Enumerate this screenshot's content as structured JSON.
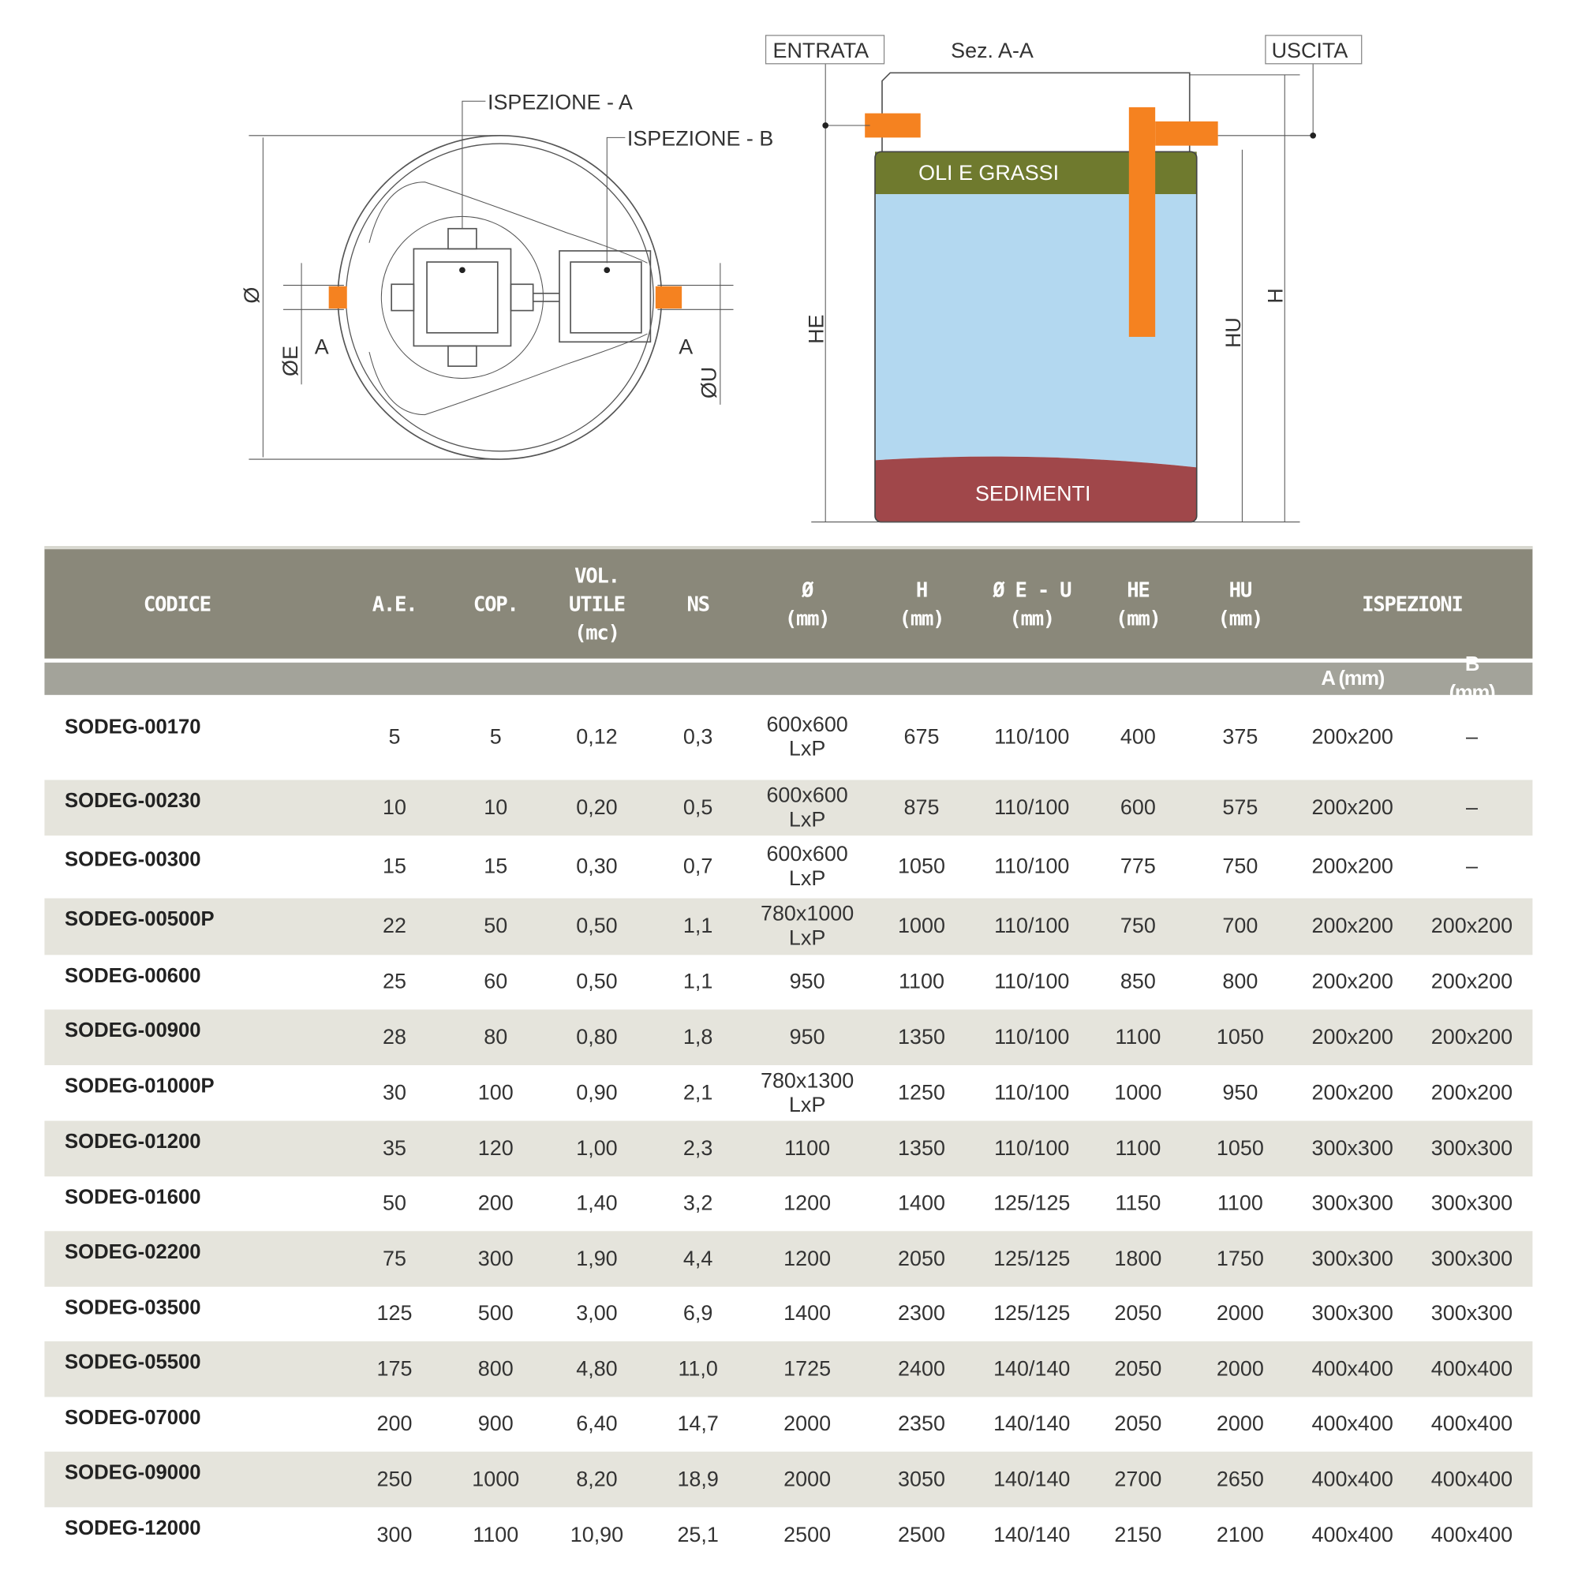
{
  "diagram": {
    "plan": {
      "labels": {
        "insp_a": "ISPEZIONE - A",
        "insp_b": "ISPEZIONE - B",
        "diameter": "Ø",
        "oe": "ØE",
        "ou": "ØU",
        "a_left": "A",
        "a_right": "A"
      }
    },
    "section": {
      "title": "Sez. A-A",
      "entrata": "ENTRATA",
      "uscita": "USCITA",
      "oli": "OLI E GRASSI",
      "sedimenti": "SEDIMENTI",
      "he": "HE",
      "hu": "HU",
      "h": "H"
    },
    "colors": {
      "pipe": "#f58220",
      "oil": "#6f7a2e",
      "water": "#b3d8f0",
      "sediment": "#a0474a"
    }
  },
  "table": {
    "headers": [
      "CODICE",
      "A.E.",
      "COP.",
      "VOL.\nUTILE\n(mc)",
      "NS",
      "Ø\n(mm)",
      "H\n(mm)",
      "Ø E - U\n(mm)",
      "HE\n(mm)",
      "HU\n(mm)",
      "ISPEZIONI"
    ],
    "subheaders": [
      "A (mm)",
      "B (mm)"
    ],
    "rows": [
      [
        "SODEG-00170",
        "5",
        "5",
        "0,12",
        "0,3",
        "600x600\nLxP",
        "675",
        "110/100",
        "400",
        "375",
        "200x200",
        "–"
      ],
      [
        "SODEG-00230",
        "10",
        "10",
        "0,20",
        "0,5",
        "600x600\nLxP",
        "875",
        "110/100",
        "600",
        "575",
        "200x200",
        "–"
      ],
      [
        "SODEG-00300",
        "15",
        "15",
        "0,30",
        "0,7",
        "600x600\nLxP",
        "1050",
        "110/100",
        "775",
        "750",
        "200x200",
        "–"
      ],
      [
        "SODEG-00500P",
        "22",
        "50",
        "0,50",
        "1,1",
        "780x1000\nLxP",
        "1000",
        "110/100",
        "750",
        "700",
        "200x200",
        "200x200"
      ],
      [
        "SODEG-00600",
        "25",
        "60",
        "0,50",
        "1,1",
        "950",
        "1100",
        "110/100",
        "850",
        "800",
        "200x200",
        "200x200"
      ],
      [
        "SODEG-00900",
        "28",
        "80",
        "0,80",
        "1,8",
        "950",
        "1350",
        "110/100",
        "1100",
        "1050",
        "200x200",
        "200x200"
      ],
      [
        "SODEG-01000P",
        "30",
        "100",
        "0,90",
        "2,1",
        "780x1300\nLxP",
        "1250",
        "110/100",
        "1000",
        "950",
        "200x200",
        "200x200"
      ],
      [
        "SODEG-01200",
        "35",
        "120",
        "1,00",
        "2,3",
        "1100",
        "1350",
        "110/100",
        "1100",
        "1050",
        "300x300",
        "300x300"
      ],
      [
        "SODEG-01600",
        "50",
        "200",
        "1,40",
        "3,2",
        "1200",
        "1400",
        "125/125",
        "1150",
        "1100",
        "300x300",
        "300x300"
      ],
      [
        "SODEG-02200",
        "75",
        "300",
        "1,90",
        "4,4",
        "1200",
        "2050",
        "125/125",
        "1800",
        "1750",
        "300x300",
        "300x300"
      ],
      [
        "SODEG-03500",
        "125",
        "500",
        "3,00",
        "6,9",
        "1400",
        "2300",
        "125/125",
        "2050",
        "2000",
        "300x300",
        "300x300"
      ],
      [
        "SODEG-05500",
        "175",
        "800",
        "4,80",
        "11,0",
        "1725",
        "2400",
        "140/140",
        "2050",
        "2000",
        "400x400",
        "400x400"
      ],
      [
        "SODEG-07000",
        "200",
        "900",
        "6,40",
        "14,7",
        "2000",
        "2350",
        "140/140",
        "2050",
        "2000",
        "400x400",
        "400x400"
      ],
      [
        "SODEG-09000",
        "250",
        "1000",
        "8,20",
        "18,9",
        "2000",
        "3050",
        "140/140",
        "2700",
        "2650",
        "400x400",
        "400x400"
      ],
      [
        "SODEG-12000",
        "300",
        "1100",
        "10,90",
        "25,1",
        "2500",
        "2500",
        "140/140",
        "2150",
        "2100",
        "400x400",
        "400x400"
      ]
    ]
  }
}
